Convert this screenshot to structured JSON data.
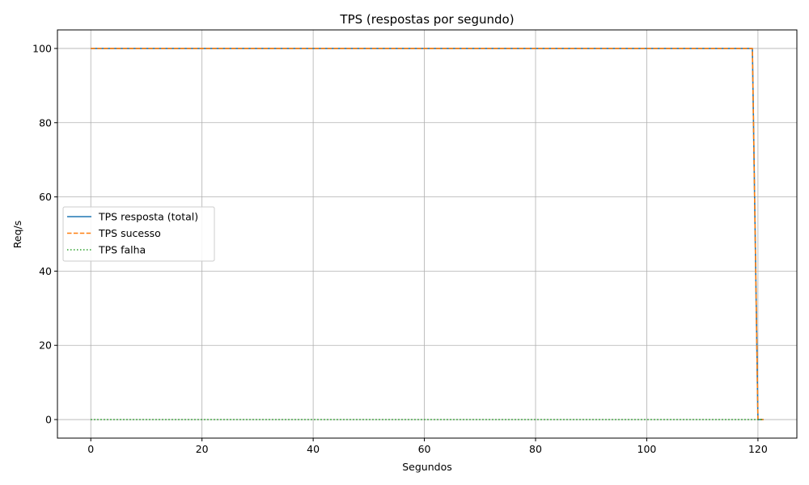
{
  "chart_data": {
    "type": "line",
    "title": "TPS (respostas por segundo)",
    "xlabel": "Segundos",
    "ylabel": "Req/s",
    "xlim": [
      -6,
      127
    ],
    "ylim": [
      -5,
      105
    ],
    "xticks": [
      0,
      20,
      40,
      60,
      80,
      100,
      120
    ],
    "yticks": [
      0,
      20,
      40,
      60,
      80,
      100
    ],
    "grid": true,
    "legend_position": "center-left",
    "series": [
      {
        "name": "TPS resposta (total)",
        "color": "#1f77b4",
        "style": "solid",
        "x": [
          0,
          119,
          120,
          121
        ],
        "y": [
          100,
          100,
          0,
          0
        ]
      },
      {
        "name": "TPS sucesso",
        "color": "#ff7f0e",
        "style": "dashed",
        "x": [
          0,
          119,
          120,
          121
        ],
        "y": [
          100,
          100,
          0,
          0
        ]
      },
      {
        "name": "TPS falha",
        "color": "#2ca02c",
        "style": "dotted",
        "x": [
          0,
          119,
          120,
          121
        ],
        "y": [
          0,
          0,
          0,
          0
        ]
      }
    ]
  }
}
